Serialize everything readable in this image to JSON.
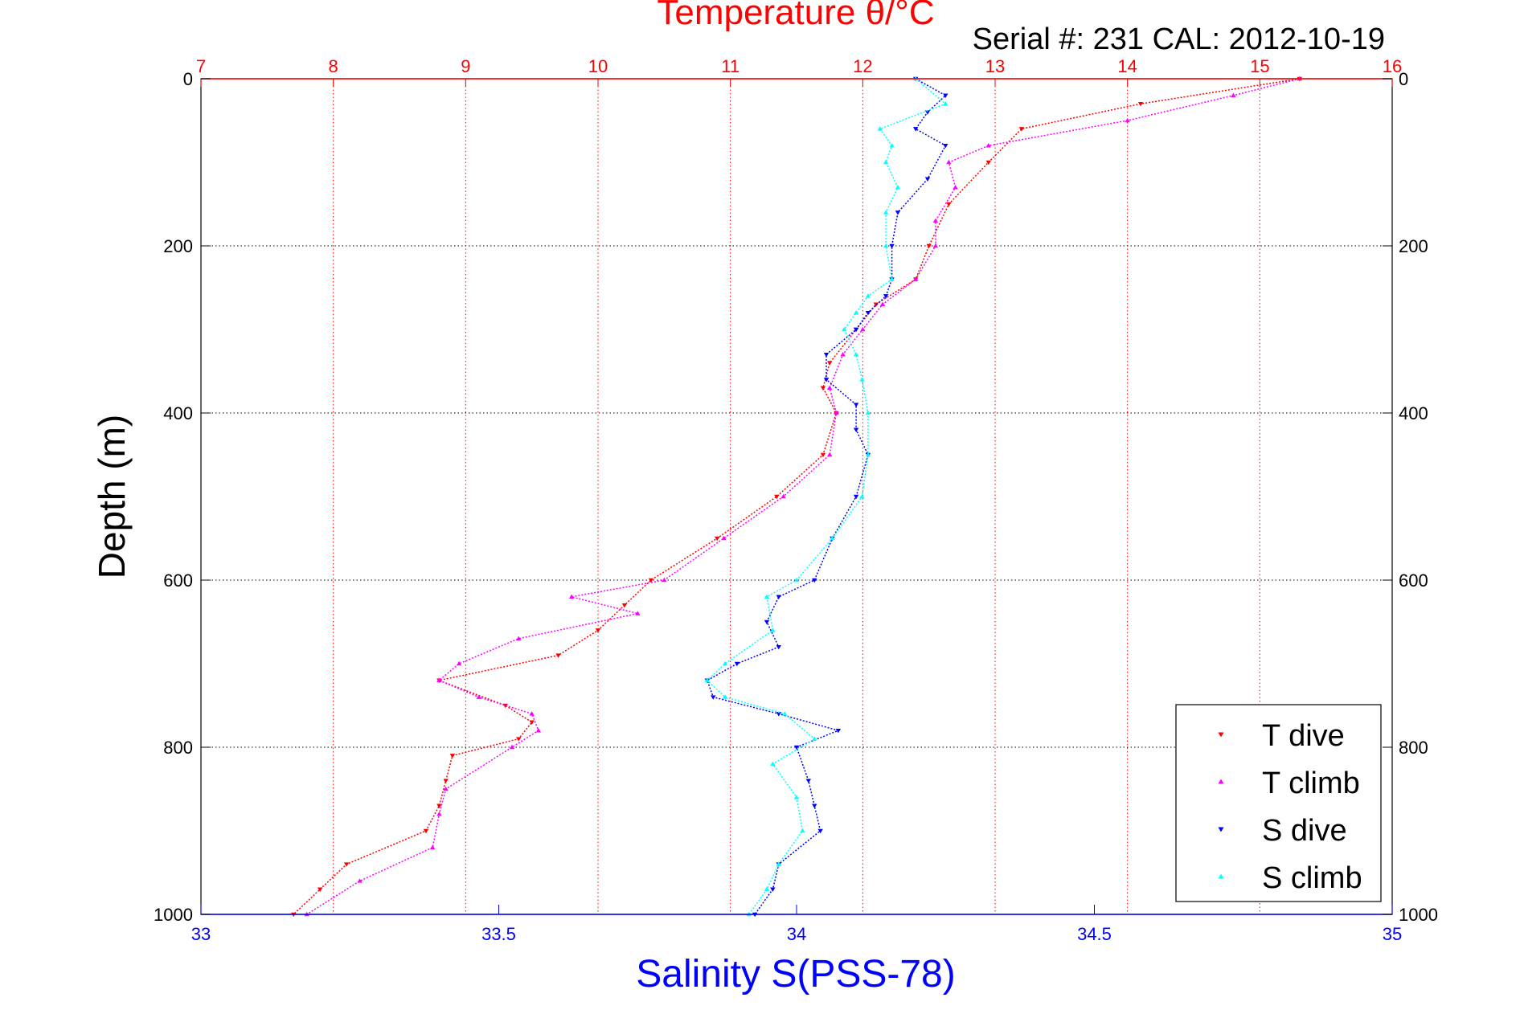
{
  "chart_data": {
    "type": "scatter",
    "title": "Temperature θ/°C",
    "subtitle": "Serial #: 231  CAL: 2012-10-19",
    "xlabel_top": "Temperature θ/°C",
    "xlabel_bottom": "Salinity S(PSS-78)",
    "ylabel": "Depth (m)",
    "temperature_axis": {
      "lim": [
        7,
        16
      ],
      "ticks": [
        "7",
        "8",
        "9",
        "10",
        "11",
        "12",
        "13",
        "14",
        "15",
        "16"
      ]
    },
    "salinity_axis": {
      "lim": [
        33,
        35
      ],
      "ticks": [
        "33",
        "33.5",
        "34",
        "34.5",
        "35"
      ]
    },
    "depth_axis": {
      "lim": [
        0,
        1000
      ],
      "reversed": true,
      "ticks": [
        "0",
        "200",
        "400",
        "600",
        "800",
        "1000"
      ]
    },
    "grid": true,
    "legend_position": "bottom-right",
    "colors": {
      "T dive": "#ff0000",
      "T climb": "#ff00ff",
      "S dive": "#0000ff",
      "S climb": "#00ffff",
      "temperature_axis": "#ff0000",
      "salinity_axis": "#0000ff"
    },
    "series": [
      {
        "name": "T dive",
        "axis": "temperature",
        "marker": "triangle-down",
        "depth": [
          0,
          30,
          60,
          100,
          150,
          200,
          240,
          270,
          300,
          340,
          370,
          400,
          450,
          500,
          550,
          600,
          630,
          660,
          690,
          720,
          750,
          770,
          790,
          810,
          840,
          870,
          900,
          940,
          970,
          1000
        ],
        "values": [
          15.3,
          14.1,
          13.2,
          12.95,
          12.65,
          12.5,
          12.4,
          12.1,
          11.95,
          11.75,
          11.7,
          11.8,
          11.7,
          11.35,
          10.9,
          10.4,
          10.2,
          10.0,
          9.7,
          8.8,
          9.3,
          9.5,
          9.4,
          8.9,
          8.85,
          8.8,
          8.7,
          8.1,
          7.9,
          7.7
        ]
      },
      {
        "name": "T climb",
        "axis": "temperature",
        "marker": "triangle-up",
        "depth": [
          0,
          20,
          50,
          80,
          100,
          130,
          170,
          200,
          240,
          270,
          300,
          330,
          370,
          400,
          450,
          500,
          550,
          600,
          620,
          640,
          670,
          700,
          720,
          740,
          760,
          780,
          800,
          850,
          880,
          920,
          960,
          1000
        ],
        "values": [
          15.3,
          14.8,
          14.0,
          12.95,
          12.65,
          12.7,
          12.55,
          12.55,
          12.4,
          12.15,
          12.0,
          11.85,
          11.75,
          11.8,
          11.75,
          11.4,
          10.95,
          10.5,
          9.8,
          10.3,
          9.4,
          8.95,
          8.8,
          9.1,
          9.5,
          9.55,
          9.35,
          8.85,
          8.8,
          8.75,
          8.2,
          7.8
        ]
      },
      {
        "name": "S dive",
        "axis": "salinity",
        "marker": "triangle-down",
        "depth": [
          0,
          20,
          40,
          60,
          80,
          120,
          160,
          200,
          240,
          260,
          280,
          300,
          330,
          360,
          390,
          420,
          450,
          500,
          550,
          600,
          620,
          650,
          680,
          700,
          720,
          740,
          760,
          780,
          800,
          840,
          870,
          900,
          940,
          970,
          1000
        ],
        "values": [
          34.2,
          34.25,
          34.22,
          34.2,
          34.25,
          34.22,
          34.17,
          34.16,
          34.16,
          34.15,
          34.12,
          34.1,
          34.05,
          34.05,
          34.1,
          34.1,
          34.12,
          34.1,
          34.06,
          34.03,
          33.97,
          33.95,
          33.97,
          33.9,
          33.85,
          33.86,
          33.97,
          34.07,
          34.0,
          34.02,
          34.03,
          34.04,
          33.97,
          33.96,
          33.93
        ]
      },
      {
        "name": "S climb",
        "axis": "salinity",
        "marker": "triangle-up",
        "depth": [
          0,
          30,
          60,
          80,
          100,
          130,
          160,
          200,
          240,
          260,
          280,
          300,
          330,
          360,
          400,
          450,
          500,
          550,
          600,
          620,
          660,
          700,
          720,
          740,
          760,
          790,
          820,
          860,
          900,
          940,
          970,
          1000
        ],
        "values": [
          34.2,
          34.25,
          34.14,
          34.16,
          34.15,
          34.17,
          34.15,
          34.15,
          34.16,
          34.12,
          34.1,
          34.08,
          34.1,
          34.11,
          34.12,
          34.12,
          34.11,
          34.06,
          34.0,
          33.95,
          33.96,
          33.88,
          33.85,
          33.88,
          33.98,
          34.03,
          33.96,
          34.0,
          34.01,
          33.97,
          33.95,
          33.92
        ]
      }
    ]
  }
}
